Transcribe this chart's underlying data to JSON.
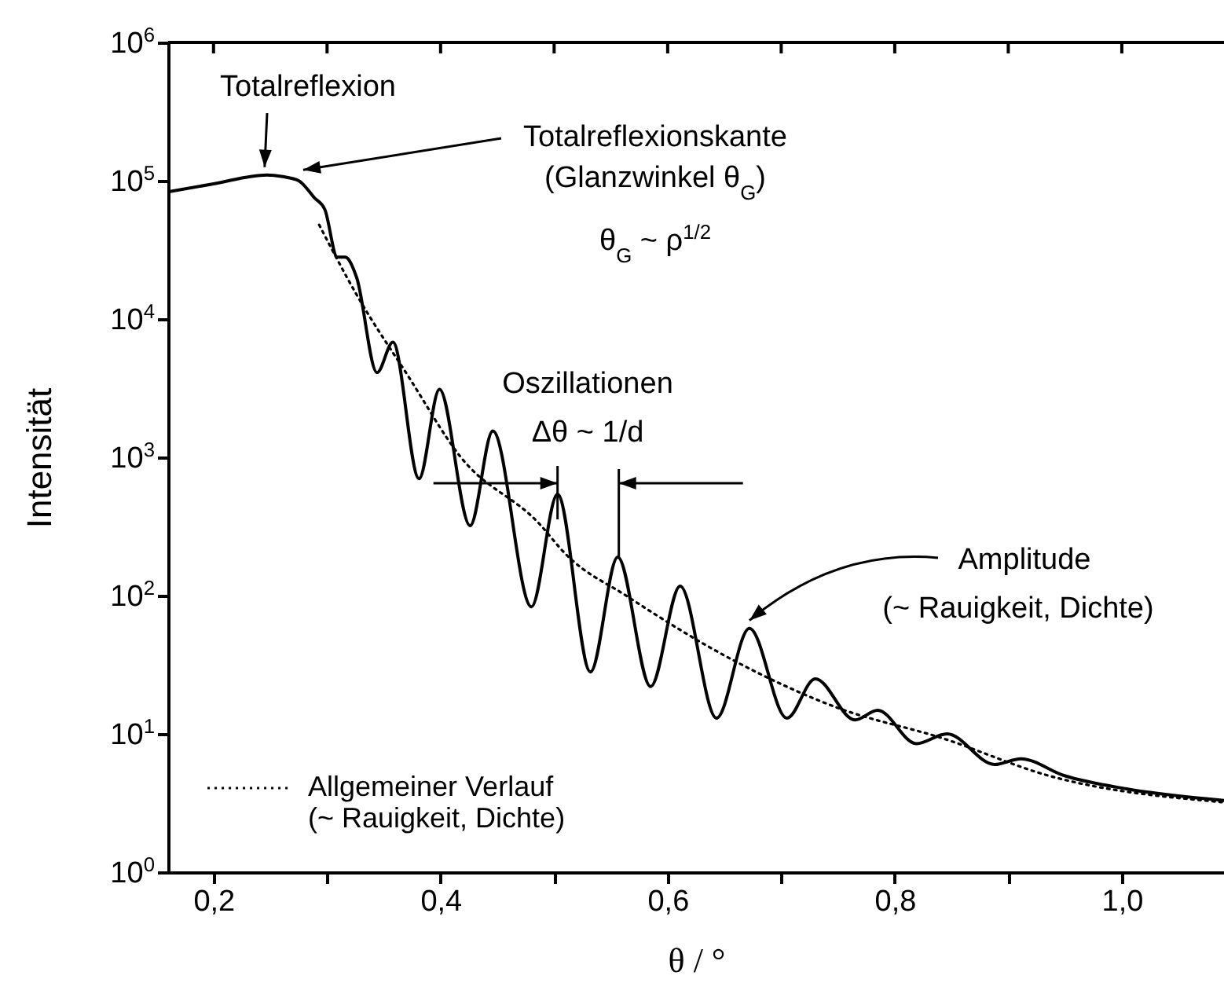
{
  "chart_data": {
    "type": "line",
    "xlabel": "θ / °",
    "ylabel": "Intensität",
    "log": "y",
    "grid": false,
    "legend": "bottom left",
    "xlim": [
      0.16,
      1.09
    ],
    "ylim": [
      1,
      1000000
    ],
    "xticks": [
      {
        "value": 0.2,
        "label": "0,2"
      },
      {
        "value": 0.3,
        "label": null
      },
      {
        "value": 0.4,
        "label": "0,4"
      },
      {
        "value": 0.5,
        "label": null
      },
      {
        "value": 0.6,
        "label": "0,6"
      },
      {
        "value": 0.7,
        "label": null
      },
      {
        "value": 0.8,
        "label": "0,8"
      },
      {
        "value": 0.9,
        "label": null
      },
      {
        "value": 1.0,
        "label": "1,0"
      }
    ],
    "yticks": [
      {
        "value": 1,
        "label": "10$^{0}$"
      },
      {
        "value": 10,
        "label": "10$^{1}$"
      },
      {
        "value": 100,
        "label": "10$^{2}$"
      },
      {
        "value": 1000,
        "label": "10$^{3}$"
      },
      {
        "value": 10000,
        "label": "10$^{4}$"
      },
      {
        "value": 100000,
        "label": "10$^{5}$"
      },
      {
        "value": 1000000,
        "label": "10$^{6}$"
      }
    ],
    "series": [
      {
        "color": "#000000",
        "line_style": "solid",
        "x": [
          0.16,
          0.2,
          0.247,
          0.261,
          0.275,
          0.289,
          0.298,
          0.309,
          0.316,
          0.326,
          0.344,
          0.358,
          0.381,
          0.399,
          0.426,
          0.446,
          0.48,
          0.503,
          0.532,
          0.556,
          0.585,
          0.611,
          0.643,
          0.672,
          0.705,
          0.73,
          0.765,
          0.785,
          0.819,
          0.846,
          0.888,
          0.911,
          0.949,
          1.004,
          1.09
        ],
        "values": [
          83000,
          95000,
          110000,
          107000,
          100000,
          75000,
          62000,
          28000,
          28000,
          20000,
          4100,
          6800,
          700,
          3100,
          320,
          1550,
          83,
          540,
          28,
          190,
          22,
          117,
          13,
          58,
          13,
          25,
          12.6,
          14.8,
          8.5,
          10,
          6,
          6.6,
          5,
          4,
          3.3
        ]
      },
      {
        "name": "Allgemeiner Verlauf\n(~ Rauigkeit, Dichte)",
        "color": "#000000",
        "line_style": "dotted",
        "x": [
          0.293,
          0.326,
          0.372,
          0.417,
          0.487,
          0.51,
          0.565,
          0.658,
          0.749,
          0.842,
          0.935,
          1.09
        ],
        "values": [
          48000,
          15000,
          3800,
          1020,
          330,
          200,
          98,
          34,
          15.5,
          9.3,
          5,
          3.2
        ]
      }
    ],
    "annotations": [
      {
        "text": "Totalreflexion",
        "x": 0.245,
        "y": 110000
      },
      {
        "text": "Totalreflexionskante",
        "x": 0.279,
        "y": 105000
      },
      "(Glanzwinkel θ$_{G}$)",
      "θ$_{G}$ ~ ρ$^{1/2}$",
      "Oszillationen",
      {
        "text": "Δθ ~ 1/d",
        "x": 0.503,
        "y": 540
      },
      {
        "text": "Amplitude",
        "x": 0.672,
        "y": 58
      },
      "(~ Rauigkeit, Dichte)"
    ]
  }
}
